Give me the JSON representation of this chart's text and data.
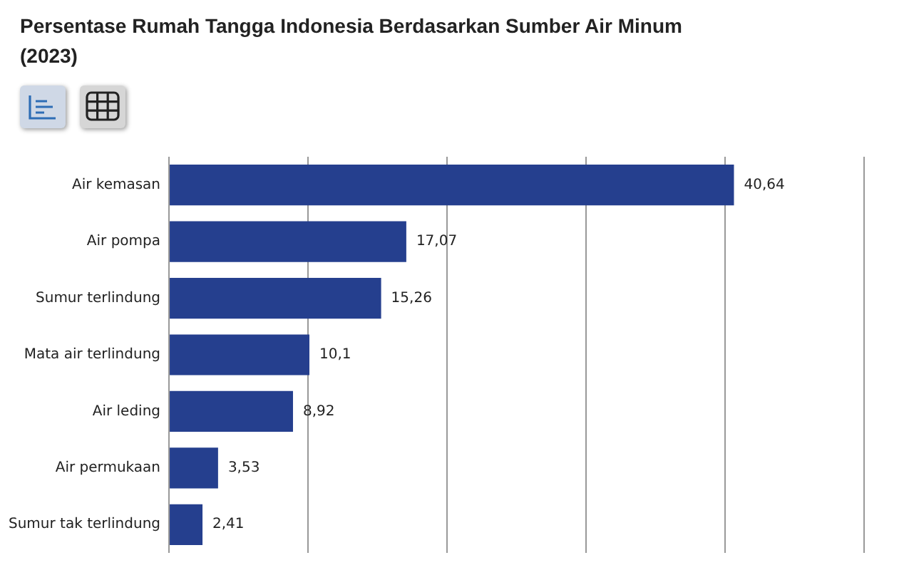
{
  "chart_data": {
    "type": "bar",
    "orientation": "horizontal",
    "title": "Persentase Rumah Tangga Indonesia Berdasarkan Sumber Air Minum (2023)",
    "categories": [
      "Air kemasan",
      "Air pompa",
      "Sumur terlindung",
      "Mata air terlindung",
      "Air leding",
      "Air permukaan",
      "Sumur tak terlindung"
    ],
    "values": [
      40.64,
      17.07,
      15.26,
      10.1,
      8.92,
      3.53,
      2.41
    ],
    "value_labels": [
      "40,64",
      "17,07",
      "15,26",
      "10,1",
      "8,92",
      "3,53",
      "2,41"
    ],
    "color": "#253f8e",
    "xlim": [
      0,
      50
    ],
    "xticks": [
      {
        "value": 0,
        "label": null
      },
      {
        "value": 10,
        "label": null
      },
      {
        "value": 20,
        "label": null
      },
      {
        "value": 30,
        "label": null
      },
      {
        "value": 40,
        "label": null
      },
      {
        "value": 50,
        "label": null
      }
    ],
    "tick_labels": "y",
    "grid": "x",
    "legend": false
  }
}
